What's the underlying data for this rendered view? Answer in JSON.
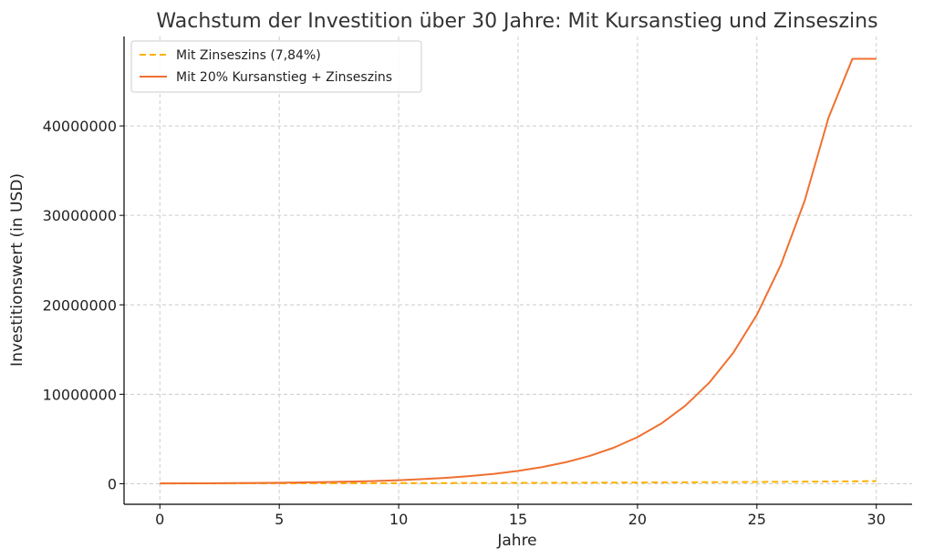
{
  "chart_data": {
    "type": "line",
    "title": "Wachstum der Investition über 30 Jahre: Mit Kursanstieg und Zinseszins",
    "xlabel": "Jahre",
    "ylabel": "Investitionswert (in USD)",
    "xlim": [
      -1.5,
      31.5
    ],
    "ylim": [
      -2300000,
      50000000
    ],
    "xticks": [
      0,
      5,
      10,
      15,
      20,
      25,
      30
    ],
    "xtick_labels": [
      "0",
      "5",
      "10",
      "15",
      "20",
      "25",
      "30"
    ],
    "yticks": [
      0,
      10000000,
      20000000,
      30000000,
      40000000
    ],
    "ytick_labels": [
      "0",
      "10000000",
      "20000000",
      "30000000",
      "40000000"
    ],
    "grid": true,
    "legend_position": "top-left",
    "x": [
      0,
      1,
      2,
      3,
      4,
      5,
      6,
      7,
      8,
      9,
      10,
      11,
      12,
      13,
      14,
      15,
      16,
      17,
      18,
      19,
      20,
      21,
      22,
      23,
      24,
      25,
      26,
      27,
      28,
      29,
      30
    ],
    "series": [
      {
        "name": "Mit Zinseszins (7,84%)",
        "color": "#ffb000",
        "style": "dashed",
        "values": [
          30000,
          32352,
          34888,
          37624,
          40573,
          43754,
          47185,
          50884,
          54873,
          59175,
          63814,
          68817,
          74212,
          80031,
          86305,
          93071,
          100368,
          108236,
          116722,
          125872,
          135740,
          146382,
          157858,
          170234,
          183580,
          197972,
          213493,
          230230,
          248280,
          267745,
          288736
        ]
      },
      {
        "name": "Mit 20% Kursanstieg + Zinseszins",
        "color": "#f07030",
        "style": "solid",
        "values": [
          30000,
          38822,
          50239,
          65013,
          84132,
          108873,
          140890,
          182323,
          235941,
          305326,
          395117,
          511312,
          661680,
          856268,
          1108080,
          1433930,
          1855614,
          2401312,
          3107487,
          4021302,
          5203884,
          6734207,
          8714555,
          11277276,
          14593622,
          18885224,
          24438800,
          31626900,
          40928300,
          47500000,
          47500000
        ]
      }
    ]
  }
}
